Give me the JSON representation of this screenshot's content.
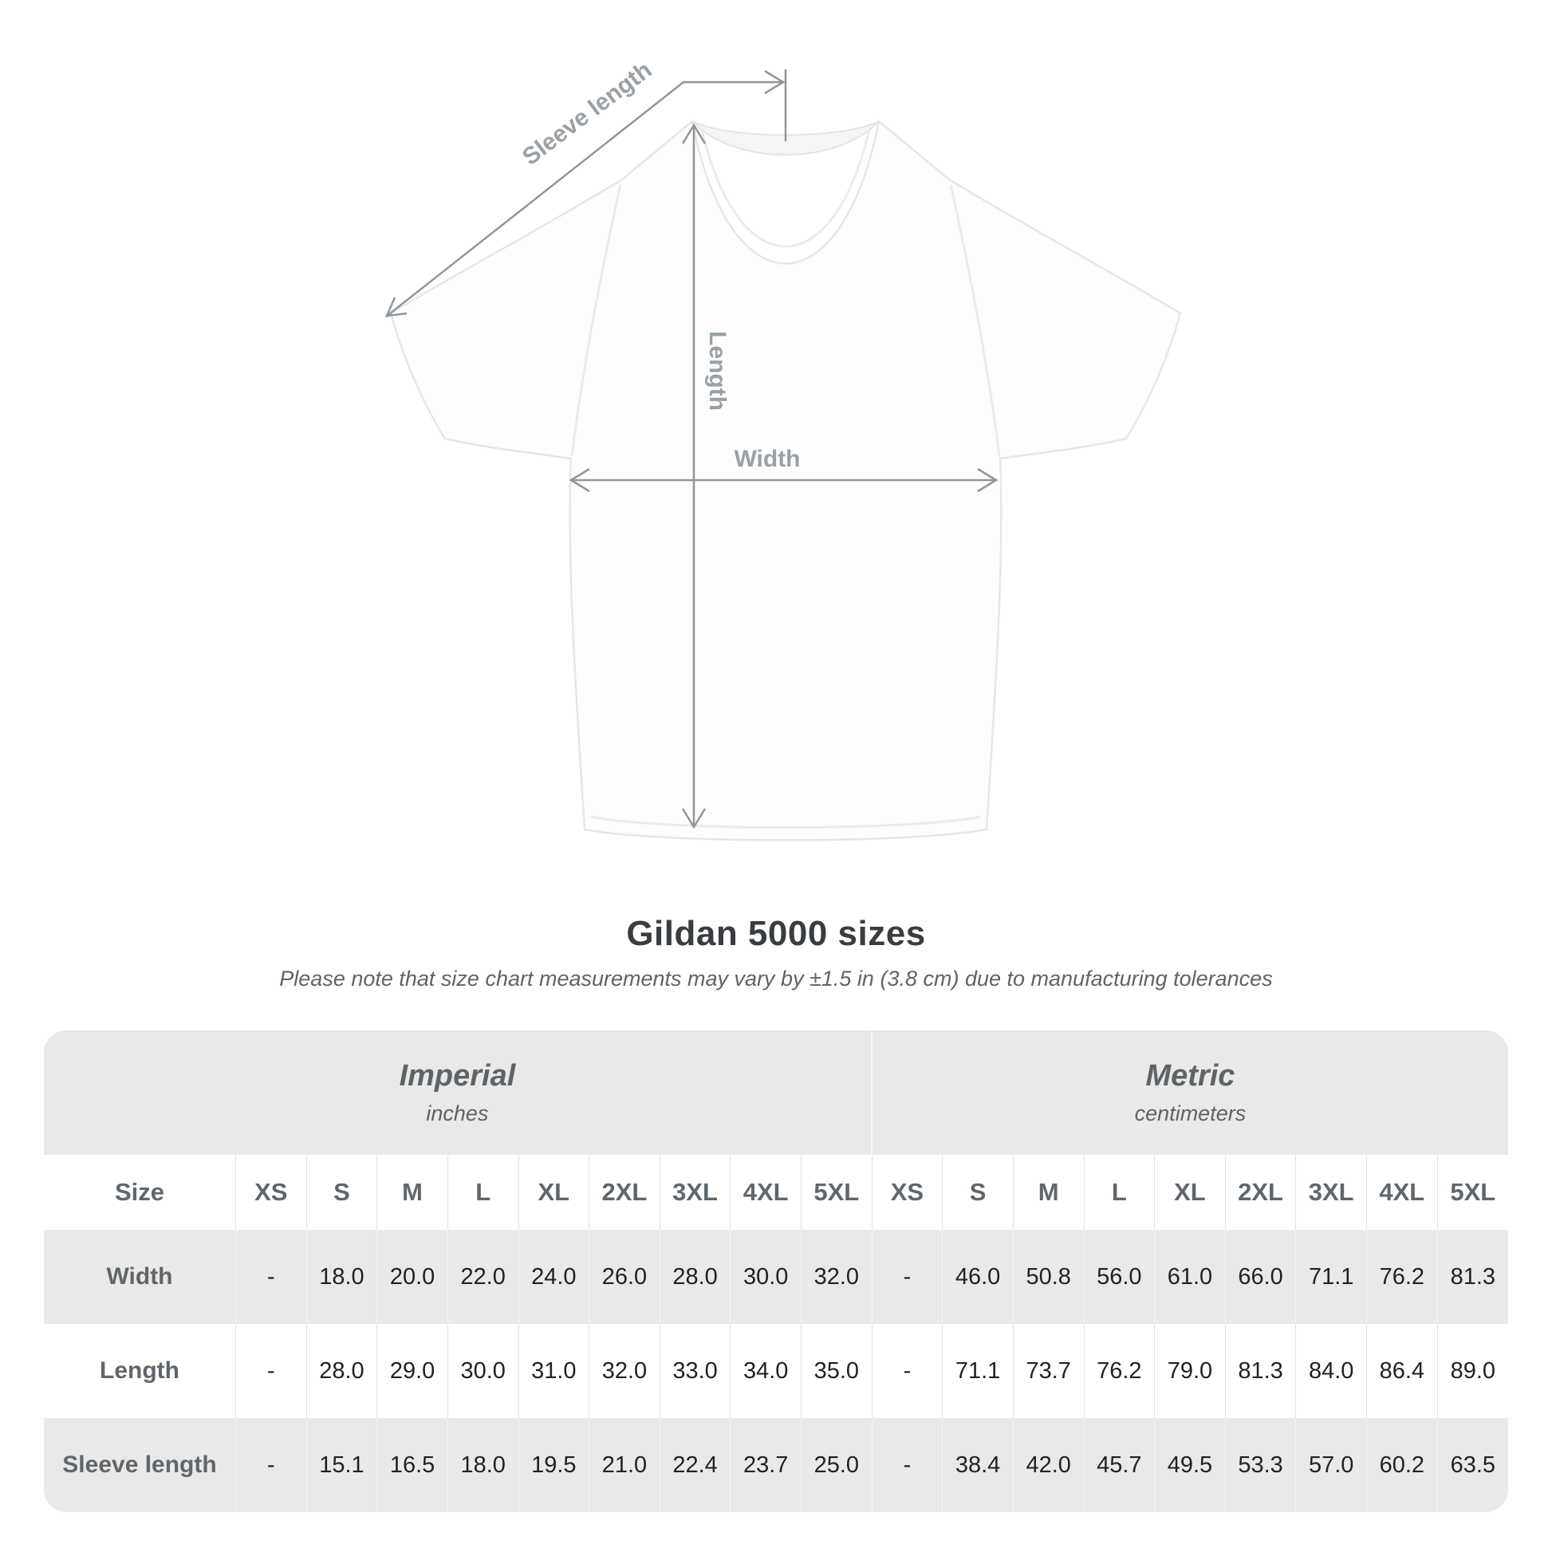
{
  "diagram": {
    "sleeve_length_label": "Sleeve length",
    "length_label": "Length",
    "width_label": "Width"
  },
  "header": {
    "title": "Gildan 5000 sizes",
    "subtitle": "Please note that size chart measurements may vary by ±1.5 in (3.8 cm) due to manufacturing tolerances"
  },
  "table": {
    "unit_groups": [
      {
        "label": "Imperial",
        "sublabel": "inches"
      },
      {
        "label": "Metric",
        "sublabel": "centimeters"
      }
    ],
    "size_header": {
      "label": "Size",
      "cells": [
        "XS",
        "S",
        "M",
        "L",
        "XL",
        "2XL",
        "3XL",
        "4XL",
        "5XL",
        "XS",
        "S",
        "M",
        "L",
        "XL",
        "2XL",
        "3XL",
        "4XL",
        "5XL"
      ]
    },
    "rows": [
      {
        "label": "Width",
        "cells": [
          "-",
          "18.0",
          "20.0",
          "22.0",
          "24.0",
          "26.0",
          "28.0",
          "30.0",
          "32.0",
          "-",
          "46.0",
          "50.8",
          "56.0",
          "61.0",
          "66.0",
          "71.1",
          "76.2",
          "81.3"
        ]
      },
      {
        "label": "Length",
        "cells": [
          "-",
          "28.0",
          "29.0",
          "30.0",
          "31.0",
          "32.0",
          "33.0",
          "34.0",
          "35.0",
          "-",
          "71.1",
          "73.7",
          "76.2",
          "79.0",
          "81.3",
          "84.0",
          "86.4",
          "89.0"
        ]
      },
      {
        "label": "Sleeve length",
        "cells": [
          "-",
          "15.1",
          "16.5",
          "18.0",
          "19.5",
          "21.0",
          "22.4",
          "23.7",
          "25.0",
          "-",
          "38.4",
          "42.0",
          "45.7",
          "49.5",
          "53.3",
          "57.0",
          "60.2",
          "63.5"
        ]
      }
    ]
  },
  "colors": {
    "annotation_gray": "#8f969c",
    "table_band_gray": "#e9e9e9",
    "title_text": "#393d40",
    "value_text": "#1f2123",
    "label_text": "#5f666c"
  }
}
